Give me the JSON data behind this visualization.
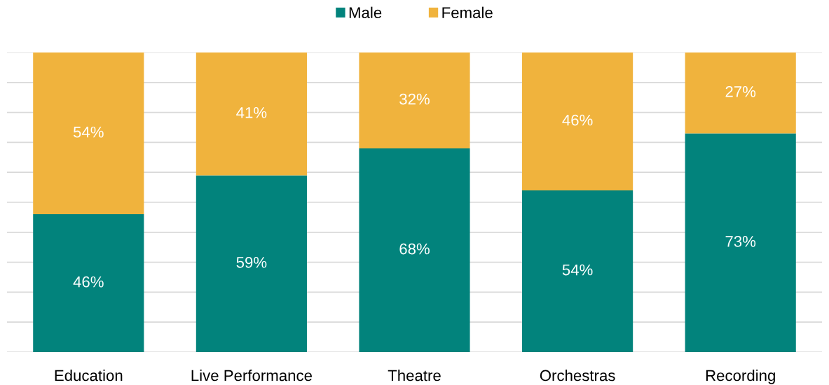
{
  "chart_data": {
    "type": "bar",
    "stacked": true,
    "categories": [
      "Education",
      "Live Performance",
      "Theatre",
      "Orchestras",
      "Recording"
    ],
    "series": [
      {
        "name": "Male",
        "color": "#02837c",
        "values": [
          46,
          59,
          68,
          54,
          73
        ],
        "value_labels": [
          "46%",
          "59%",
          "68%",
          "54%",
          "73%"
        ]
      },
      {
        "name": "Female",
        "color": "#f0b33d",
        "values": [
          54,
          41,
          32,
          46,
          27
        ],
        "value_labels": [
          "54%",
          "41%",
          "32%",
          "46%",
          "27%"
        ]
      }
    ],
    "ylim": [
      0,
      100
    ],
    "yticks": [
      {
        "value": 0,
        "label": null
      },
      {
        "value": 10,
        "label": null
      },
      {
        "value": 20,
        "label": null
      },
      {
        "value": 30,
        "label": null
      },
      {
        "value": 40,
        "label": null
      },
      {
        "value": 50,
        "label": null
      },
      {
        "value": 60,
        "label": null
      },
      {
        "value": 70,
        "label": null
      },
      {
        "value": 80,
        "label": null
      },
      {
        "value": 90,
        "label": null
      },
      {
        "value": 100,
        "label": null
      }
    ],
    "tick_labels": "x",
    "grid": "y",
    "legend": "top"
  }
}
